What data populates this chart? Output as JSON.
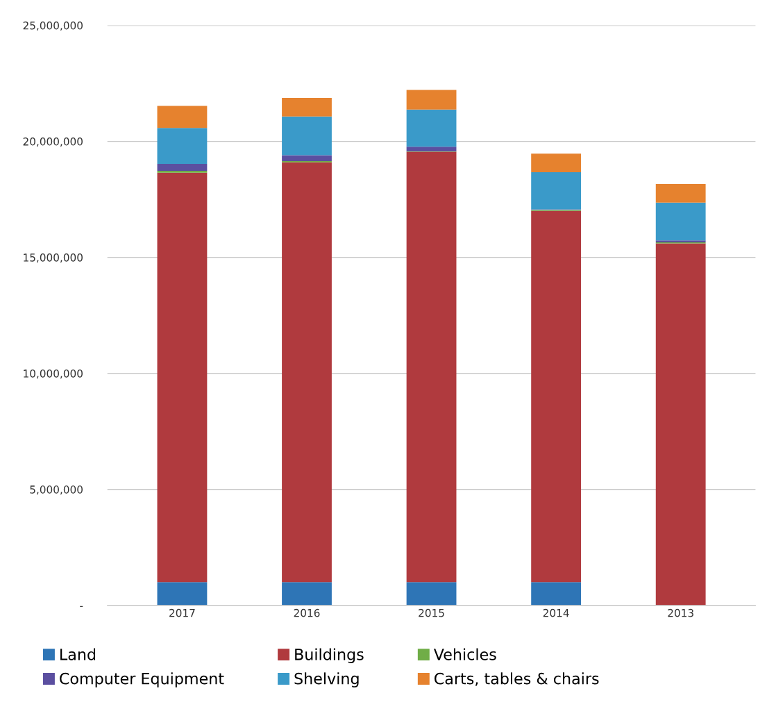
{
  "chart_data": {
    "type": "bar",
    "stacked": true,
    "categories": [
      "2017",
      "2016",
      "2015",
      "2014",
      "2013"
    ],
    "series": [
      {
        "name": "Land",
        "color": "#2e75b6",
        "values": [
          1000000,
          1000000,
          1000000,
          1000000,
          0
        ]
      },
      {
        "name": "Buildings",
        "color": "#b03a3e",
        "values": [
          17650000,
          18100000,
          18550000,
          16000000,
          15600000
        ]
      },
      {
        "name": "Vehicles",
        "color": "#70ad47",
        "values": [
          80000,
          50000,
          20000,
          50000,
          50000
        ]
      },
      {
        "name": "Computer Equipment",
        "color": "#5b4fa0",
        "values": [
          300000,
          250000,
          200000,
          20000,
          80000
        ]
      },
      {
        "name": "Shelving",
        "color": "#3a9ac9",
        "values": [
          1550000,
          1670000,
          1600000,
          1600000,
          1630000
        ]
      },
      {
        "name": "Carts, tables & chairs",
        "color": "#e6822e",
        "values": [
          950000,
          800000,
          850000,
          800000,
          800000
        ]
      }
    ],
    "ylim": [
      0,
      25000000
    ],
    "yticks": [
      {
        "value": 0,
        "label": "-"
      },
      {
        "value": 5000000,
        "label": "5,000,000"
      },
      {
        "value": 10000000,
        "label": "10,000,000"
      },
      {
        "value": 15000000,
        "label": "15,000,000"
      },
      {
        "value": 20000000,
        "label": "20,000,000"
      },
      {
        "value": 25000000,
        "label": "25,000,000"
      }
    ],
    "grid": "y",
    "legend": "bottom"
  }
}
